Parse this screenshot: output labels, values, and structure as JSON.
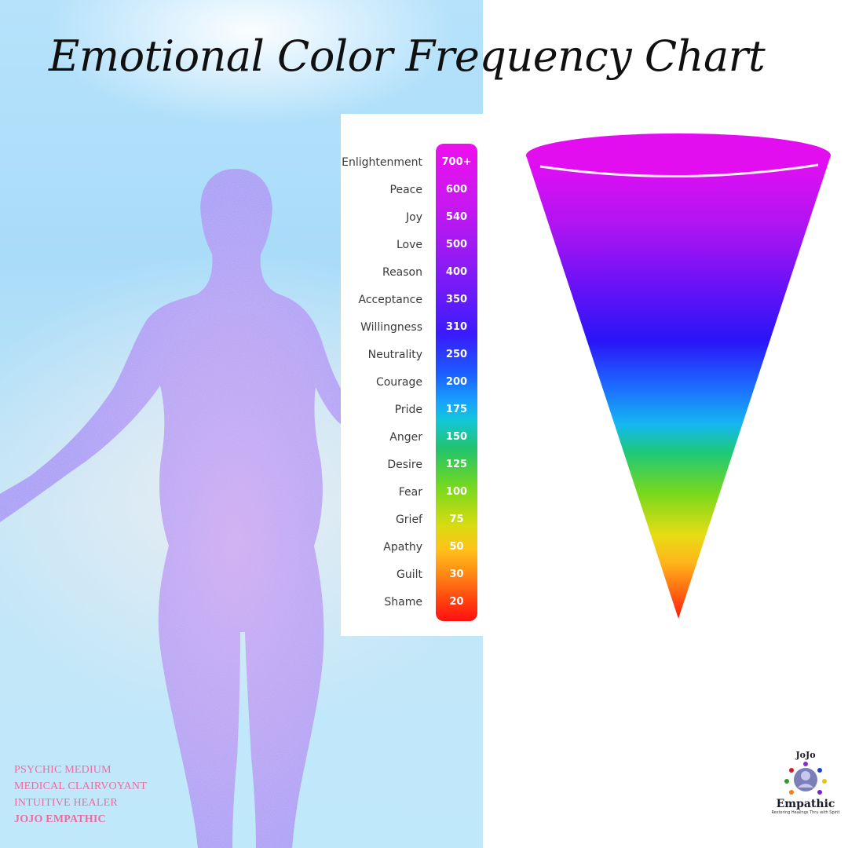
{
  "title": "Emotional Color Frequency Chart",
  "chart": {
    "rows": [
      {
        "emotion": "Enlightenment",
        "value": "700+"
      },
      {
        "emotion": "Peace",
        "value": "600"
      },
      {
        "emotion": "Joy",
        "value": "540"
      },
      {
        "emotion": "Love",
        "value": "500"
      },
      {
        "emotion": "Reason",
        "value": "400"
      },
      {
        "emotion": "Acceptance",
        "value": "350"
      },
      {
        "emotion": "Willingness",
        "value": "310"
      },
      {
        "emotion": "Neutrality",
        "value": "250"
      },
      {
        "emotion": "Courage",
        "value": "200"
      },
      {
        "emotion": "Pride",
        "value": "175"
      },
      {
        "emotion": "Anger",
        "value": "150"
      },
      {
        "emotion": "Desire",
        "value": "125"
      },
      {
        "emotion": "Fear",
        "value": "100"
      },
      {
        "emotion": "Grief",
        "value": "75"
      },
      {
        "emotion": "Apathy",
        "value": "50"
      },
      {
        "emotion": "Guilt",
        "value": "30"
      },
      {
        "emotion": "Shame",
        "value": "20"
      }
    ]
  },
  "tagline": {
    "line1": "PSYCHIC MEDIUM",
    "line2": "MEDICAL CLAIRVOYANT",
    "line3": "INTUITIVE HEALER",
    "line4": "JOJO EMPATHIC"
  },
  "logo": {
    "top": "JoJo",
    "bottom": "Empathic",
    "tag": "Restoring Healings Thru with Spirit"
  },
  "colors": {
    "tagline": "#f06aa0",
    "silhouette": "#b49cf4",
    "background": "#b6e2fb"
  }
}
